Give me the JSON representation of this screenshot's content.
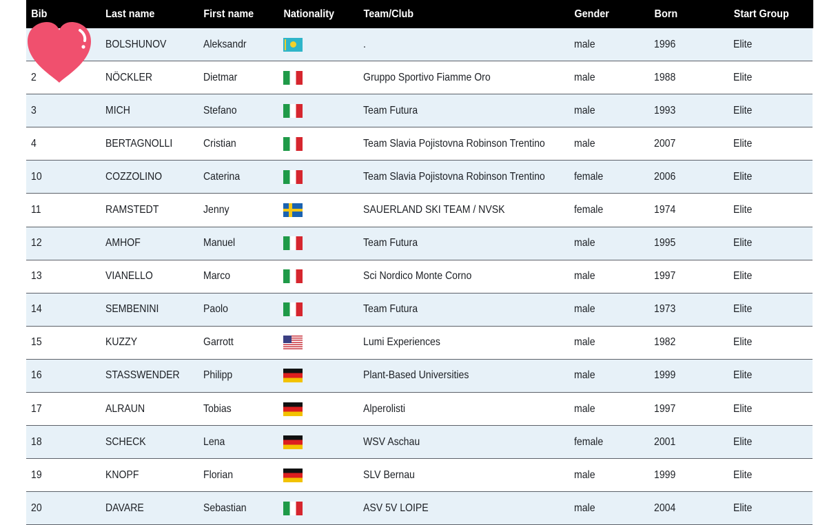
{
  "header": {
    "bib": "Bib",
    "last_name": "Last name",
    "first_name": "First name",
    "nationality": "Nationality",
    "team": "Team/Club",
    "gender": "Gender",
    "born": "Born",
    "start_group": "Start Group"
  },
  "rows": [
    {
      "bib": "",
      "last": "BOLSHUNOV",
      "first": "Aleksandr",
      "flag": "kz",
      "team": ".",
      "gender": "male",
      "born": "1996",
      "group": "Elite"
    },
    {
      "bib": "2",
      "last": "NÖCKLER",
      "first": "Dietmar",
      "flag": "it",
      "team": "Gruppo Sportivo Fiamme Oro",
      "gender": "male",
      "born": "1988",
      "group": "Elite"
    },
    {
      "bib": "3",
      "last": "MICH",
      "first": "Stefano",
      "flag": "it",
      "team": "Team Futura",
      "gender": "male",
      "born": "1993",
      "group": "Elite"
    },
    {
      "bib": "4",
      "last": "BERTAGNOLLI",
      "first": "Cristian",
      "flag": "it",
      "team": "Team Slavia Pojistovna Robinson Trentino",
      "gender": "male",
      "born": "2007",
      "group": "Elite"
    },
    {
      "bib": "10",
      "last": "COZZOLINO",
      "first": "Caterina",
      "flag": "it",
      "team": "Team Slavia Pojistovna Robinson Trentino",
      "gender": "female",
      "born": "2006",
      "group": "Elite"
    },
    {
      "bib": "11",
      "last": "RAMSTEDT",
      "first": "Jenny",
      "flag": "se",
      "team": "SAUERLAND SKI TEAM / NVSK",
      "gender": "female",
      "born": "1974",
      "group": "Elite"
    },
    {
      "bib": "12",
      "last": "AMHOF",
      "first": "Manuel",
      "flag": "it",
      "team": "Team Futura",
      "gender": "male",
      "born": "1995",
      "group": "Elite"
    },
    {
      "bib": "13",
      "last": "VIANELLO",
      "first": "Marco",
      "flag": "it",
      "team": "Sci Nordico Monte Corno",
      "gender": "male",
      "born": "1997",
      "group": "Elite"
    },
    {
      "bib": "14",
      "last": "SEMBENINI",
      "first": "Paolo",
      "flag": "it",
      "team": "Team Futura",
      "gender": "male",
      "born": "1973",
      "group": "Elite"
    },
    {
      "bib": "15",
      "last": "KUZZY",
      "first": "Garrott",
      "flag": "us",
      "team": "Lumi Experiences",
      "gender": "male",
      "born": "1982",
      "group": "Elite"
    },
    {
      "bib": "16",
      "last": "STASSWENDER",
      "first": "Philipp",
      "flag": "de",
      "team": "Plant-Based Universities",
      "gender": "male",
      "born": "1999",
      "group": "Elite"
    },
    {
      "bib": "17",
      "last": "ALRAUN",
      "first": "Tobias",
      "flag": "de",
      "team": "Alperolisti",
      "gender": "male",
      "born": "1997",
      "group": "Elite"
    },
    {
      "bib": "18",
      "last": "SCHECK",
      "first": "Lena",
      "flag": "de",
      "team": "WSV Aschau",
      "gender": "female",
      "born": "2001",
      "group": "Elite"
    },
    {
      "bib": "19",
      "last": "KNOPF",
      "first": "Florian",
      "flag": "de",
      "team": "SLV Bernau",
      "gender": "male",
      "born": "1999",
      "group": "Elite"
    },
    {
      "bib": "20",
      "last": "DAVARE",
      "first": "Sebastian",
      "flag": "it",
      "team": "ASV 5V LOIPE",
      "gender": "male",
      "born": "2004",
      "group": "Elite"
    }
  ],
  "colors": {
    "header_bg": "#000000",
    "row_alt_bg": "#e7f1f8",
    "heart": "#f0506e"
  },
  "overlay_icon": "heart-icon"
}
